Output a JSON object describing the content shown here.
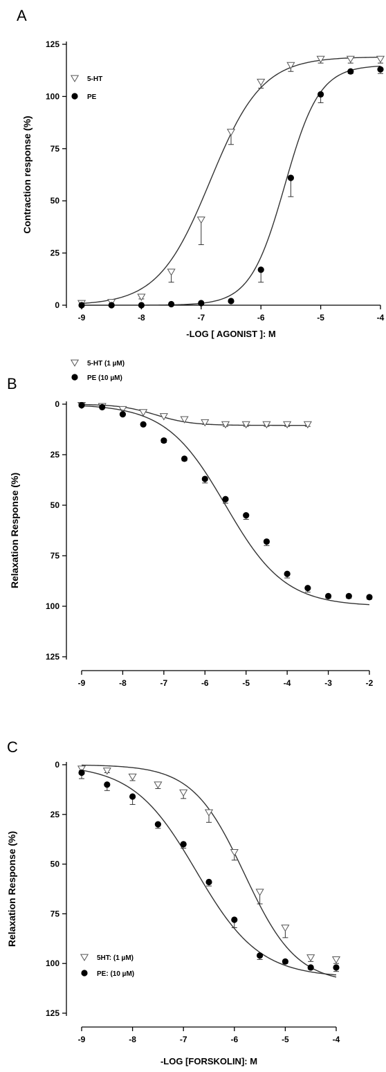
{
  "chart_data": [
    {
      "panel": "A",
      "type": "line",
      "xlabel": "-LOG [ AGONIST ]: M",
      "ylabel": "Contraction response (%)",
      "xlim": [
        -9,
        -4
      ],
      "ylim": [
        0,
        125
      ],
      "y_inverted": false,
      "xticks": [
        -9,
        -8,
        -7,
        -6,
        -5,
        -4
      ],
      "yticks": [
        0,
        25,
        50,
        75,
        100,
        125
      ],
      "legend_position": "top-left",
      "series": [
        {
          "name": "5-HT",
          "marker": "open-triangle-down",
          "points": [
            {
              "x": -9,
              "y": 1,
              "err": 1
            },
            {
              "x": -8.5,
              "y": 1.5,
              "err": 1
            },
            {
              "x": -8,
              "y": 4,
              "err": 1
            },
            {
              "x": -7.5,
              "y": 16,
              "err": 5
            },
            {
              "x": -7,
              "y": 41,
              "err": 12
            },
            {
              "x": -6.5,
              "y": 83,
              "err": 6
            },
            {
              "x": -6,
              "y": 107,
              "err": 3
            },
            {
              "x": -5.5,
              "y": 115,
              "err": 3
            },
            {
              "x": -5,
              "y": 118,
              "err": 2
            },
            {
              "x": -4.5,
              "y": 118,
              "err": 2
            },
            {
              "x": -4,
              "y": 118,
              "err": 2
            }
          ],
          "fit": {
            "bottom": 0,
            "top": 119,
            "logEC50": -6.85,
            "hill": 1.0
          }
        },
        {
          "name": "PE",
          "marker": "filled-circle",
          "points": [
            {
              "x": -9,
              "y": 0,
              "err": 0
            },
            {
              "x": -8.5,
              "y": 0,
              "err": 0
            },
            {
              "x": -8,
              "y": 0,
              "err": 0
            },
            {
              "x": -7.5,
              "y": 0.5,
              "err": 0
            },
            {
              "x": -7,
              "y": 1,
              "err": 0
            },
            {
              "x": -6.5,
              "y": 2,
              "err": 0
            },
            {
              "x": -6,
              "y": 17,
              "err": 6
            },
            {
              "x": -5.5,
              "y": 61,
              "err": 9
            },
            {
              "x": -5,
              "y": 101,
              "err": 4
            },
            {
              "x": -4.5,
              "y": 112,
              "err": 1
            },
            {
              "x": -4,
              "y": 113,
              "err": 2
            }
          ],
          "fit": {
            "bottom": 0,
            "top": 115,
            "logEC50": -5.6,
            "hill": 1.5
          }
        }
      ]
    },
    {
      "panel": "B",
      "type": "line",
      "xlabel": "-LOG [ISOPROTERENOL]: M",
      "ylabel": "Relaxation Response (%)",
      "xlim": [
        -9,
        -2
      ],
      "ylim": [
        0,
        125
      ],
      "y_inverted": true,
      "xticks": [
        -9,
        -8,
        -7,
        -6,
        -5,
        -4,
        -3,
        -2
      ],
      "yticks": [
        0,
        25,
        50,
        75,
        100,
        125
      ],
      "legend_position": "bottom-left",
      "series": [
        {
          "name": "5-HT (1 µM)",
          "marker": "open-triangle-down",
          "points": [
            {
              "x": -9,
              "y": 0.5,
              "err": 0
            },
            {
              "x": -8.5,
              "y": 1,
              "err": 0
            },
            {
              "x": -8,
              "y": 2.5,
              "err": 0
            },
            {
              "x": -7.5,
              "y": 4,
              "err": 0
            },
            {
              "x": -7,
              "y": 6,
              "err": 0
            },
            {
              "x": -6.5,
              "y": 7.5,
              "err": 0
            },
            {
              "x": -6,
              "y": 9,
              "err": 1
            },
            {
              "x": -5.5,
              "y": 10,
              "err": 1
            },
            {
              "x": -5,
              "y": 10,
              "err": 1
            },
            {
              "x": -4.5,
              "y": 10,
              "err": 1
            },
            {
              "x": -4,
              "y": 10,
              "err": 1
            },
            {
              "x": -3.5,
              "y": 10,
              "err": 1
            }
          ],
          "fit": {
            "bottom": 0,
            "top": 10.5,
            "logEC50": -7.2,
            "hill": 1.0,
            "xmax": -3.5
          }
        },
        {
          "name": "PE (10 µM)",
          "marker": "filled-circle",
          "points": [
            {
              "x": -9,
              "y": 0.5,
              "err": 0
            },
            {
              "x": -8.5,
              "y": 1.5,
              "err": 0
            },
            {
              "x": -8,
              "y": 5,
              "err": 0
            },
            {
              "x": -7.5,
              "y": 10,
              "err": 0
            },
            {
              "x": -7,
              "y": 18,
              "err": 1
            },
            {
              "x": -6.5,
              "y": 27,
              "err": 1
            },
            {
              "x": -6,
              "y": 37,
              "err": 2
            },
            {
              "x": -5.5,
              "y": 47,
              "err": 2
            },
            {
              "x": -5,
              "y": 55,
              "err": 2
            },
            {
              "x": -4.5,
              "y": 68,
              "err": 2
            },
            {
              "x": -4,
              "y": 84,
              "err": 2
            },
            {
              "x": -3.5,
              "y": 91,
              "err": 2
            },
            {
              "x": -3,
              "y": 95,
              "err": 1
            },
            {
              "x": -2.5,
              "y": 95,
              "err": 1
            },
            {
              "x": -2,
              "y": 95.5,
              "err": 1
            }
          ],
          "fit": {
            "bottom": 0,
            "top": 100,
            "logEC50": -5.5,
            "hill": 0.6
          }
        }
      ]
    },
    {
      "panel": "C",
      "type": "line",
      "xlabel": "-LOG [FORSKOLIN]: M",
      "ylabel": "Relaxation Response (%)",
      "xlim": [
        -9,
        -4
      ],
      "ylim": [
        0,
        125
      ],
      "y_inverted": true,
      "xticks": [
        -9,
        -8,
        -7,
        -6,
        -5,
        -4
      ],
      "yticks": [
        0,
        25,
        50,
        75,
        100,
        125
      ],
      "legend_position": "bottom-left",
      "series": [
        {
          "name": "5HT: (1 µM)",
          "marker": "open-triangle-down",
          "points": [
            {
              "x": -9,
              "y": 2,
              "err": 1
            },
            {
              "x": -8.5,
              "y": 3,
              "err": 1
            },
            {
              "x": -8,
              "y": 6,
              "err": 2
            },
            {
              "x": -7.5,
              "y": 10,
              "err": 2
            },
            {
              "x": -7,
              "y": 14,
              "err": 3
            },
            {
              "x": -6.5,
              "y": 24,
              "err": 5
            },
            {
              "x": -6,
              "y": 44,
              "err": 4
            },
            {
              "x": -5.5,
              "y": 64,
              "err": 6
            },
            {
              "x": -5,
              "y": 82,
              "err": 5
            },
            {
              "x": -4.5,
              "y": 97,
              "err": 2
            },
            {
              "x": -4,
              "y": 98,
              "err": 2
            }
          ],
          "fit": {
            "bottom": 0,
            "top": 110,
            "logEC50": -5.8,
            "hill": 0.85
          }
        },
        {
          "name": "PE: (10 µM)",
          "marker": "filled-circle",
          "points": [
            {
              "x": -9,
              "y": 4,
              "err": 3
            },
            {
              "x": -8.5,
              "y": 10,
              "err": 3
            },
            {
              "x": -8,
              "y": 16,
              "err": 4
            },
            {
              "x": -7.5,
              "y": 30,
              "err": 2
            },
            {
              "x": -7,
              "y": 40,
              "err": 2
            },
            {
              "x": -6.5,
              "y": 59,
              "err": 2
            },
            {
              "x": -6,
              "y": 78,
              "err": 4
            },
            {
              "x": -5.5,
              "y": 96,
              "err": 2
            },
            {
              "x": -5,
              "y": 99,
              "err": 1
            },
            {
              "x": -4.5,
              "y": 102,
              "err": 1
            },
            {
              "x": -4,
              "y": 102,
              "err": 2
            }
          ],
          "fit": {
            "bottom": 0,
            "top": 107,
            "logEC50": -6.75,
            "hill": 0.7
          }
        }
      ]
    }
  ]
}
